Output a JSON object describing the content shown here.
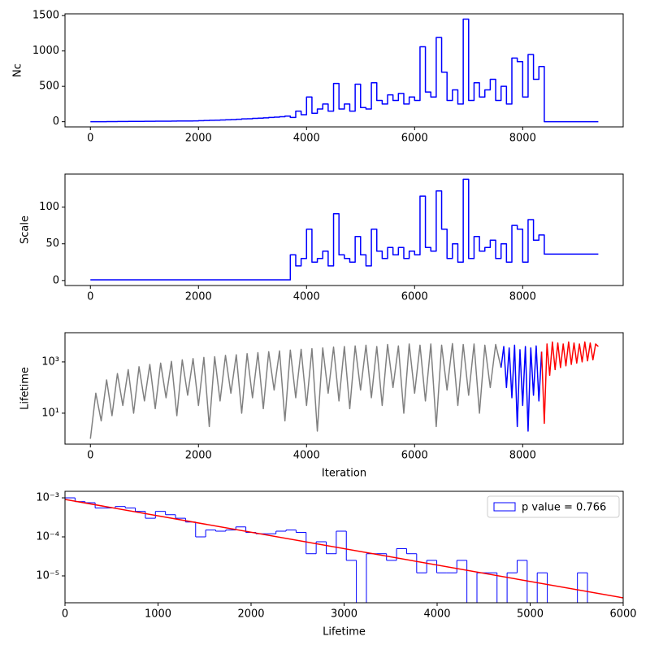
{
  "chart_data": [
    {
      "type": "line",
      "ylabel": "Nc",
      "step": true,
      "x": [
        0,
        100,
        200,
        300,
        400,
        500,
        600,
        700,
        800,
        900,
        1000,
        1100,
        1200,
        1300,
        1400,
        1500,
        1600,
        1700,
        1800,
        1900,
        2000,
        2100,
        2200,
        2300,
        2400,
        2500,
        2600,
        2700,
        2800,
        2900,
        3000,
        3100,
        3200,
        3300,
        3400,
        3500,
        3600,
        3700,
        3800,
        3900,
        4000,
        4100,
        4200,
        4300,
        4400,
        4500,
        4600,
        4700,
        4800,
        4900,
        5000,
        5100,
        5200,
        5300,
        5400,
        5500,
        5600,
        5700,
        5800,
        5900,
        6000,
        6100,
        6200,
        6300,
        6400,
        6500,
        6600,
        6700,
        6800,
        6900,
        7000,
        7100,
        7200,
        7300,
        7400,
        7500,
        7600,
        7700,
        7800,
        7900,
        8000,
        8100,
        8200,
        8300,
        8400,
        8500,
        8600,
        8700,
        8800,
        8900,
        9000,
        9100,
        9200,
        9300,
        9400
      ],
      "series": [
        {
          "color": "#0000ff",
          "values": [
            0,
            1,
            1,
            2,
            2,
            3,
            3,
            4,
            5,
            5,
            6,
            6,
            7,
            8,
            8,
            9,
            10,
            10,
            11,
            12,
            15,
            18,
            20,
            22,
            25,
            28,
            30,
            35,
            40,
            42,
            48,
            50,
            55,
            60,
            65,
            70,
            80,
            60,
            150,
            100,
            350,
            120,
            180,
            250,
            150,
            540,
            180,
            250,
            150,
            530,
            200,
            180,
            550,
            300,
            250,
            380,
            300,
            400,
            250,
            350,
            300,
            1060,
            420,
            350,
            1190,
            700,
            300,
            450,
            250,
            1450,
            300,
            550,
            350,
            450,
            600,
            300,
            500,
            250,
            900,
            850,
            350,
            950,
            600,
            780,
            0,
            0,
            0,
            0,
            0,
            0,
            0,
            0,
            0,
            0,
            0
          ]
        }
      ],
      "xlim": [
        -470,
        9860
      ],
      "xticks": [
        0,
        2000,
        4000,
        6000,
        8000
      ],
      "ylim": [
        -73,
        1525
      ],
      "yticks": [
        0,
        500,
        1000,
        1500
      ]
    },
    {
      "type": "line",
      "ylabel": "Scale",
      "step": true,
      "x": [
        0,
        100,
        200,
        300,
        400,
        500,
        600,
        700,
        800,
        900,
        1000,
        1100,
        1200,
        1300,
        1400,
        1500,
        1600,
        1700,
        1800,
        1900,
        2000,
        2100,
        2200,
        2300,
        2400,
        2500,
        2600,
        2700,
        2800,
        2900,
        3000,
        3100,
        3200,
        3300,
        3400,
        3500,
        3600,
        3700,
        3800,
        3900,
        4000,
        4100,
        4200,
        4300,
        4400,
        4500,
        4600,
        4700,
        4800,
        4900,
        5000,
        5100,
        5200,
        5300,
        5400,
        5500,
        5600,
        5700,
        5800,
        5900,
        6000,
        6100,
        6200,
        6300,
        6400,
        6500,
        6600,
        6700,
        6800,
        6900,
        7000,
        7100,
        7200,
        7300,
        7400,
        7500,
        7600,
        7700,
        7800,
        7900,
        8000,
        8100,
        8200,
        8300,
        8400,
        8500,
        8600,
        8700,
        8800,
        8900,
        9000,
        9100,
        9200,
        9300,
        9400
      ],
      "series": [
        {
          "color": "#0000ff",
          "values": [
            1,
            1,
            1,
            1,
            1,
            1,
            1,
            1,
            1,
            1,
            1,
            1,
            1,
            1,
            1,
            1,
            1,
            1,
            1,
            1,
            1,
            1,
            1,
            1,
            1,
            1,
            1,
            1,
            1,
            1,
            1,
            1,
            1,
            1,
            1,
            1,
            1,
            35,
            20,
            30,
            70,
            25,
            30,
            40,
            20,
            91,
            35,
            30,
            25,
            60,
            35,
            20,
            70,
            40,
            30,
            45,
            35,
            45,
            30,
            40,
            35,
            115,
            45,
            40,
            122,
            70,
            30,
            50,
            25,
            138,
            30,
            60,
            40,
            45,
            55,
            30,
            50,
            25,
            75,
            70,
            25,
            83,
            55,
            62,
            36,
            36,
            36,
            36,
            36,
            36,
            36,
            36,
            36,
            36,
            36
          ]
        }
      ],
      "xlim": [
        -470,
        9860
      ],
      "xticks": [
        0,
        2000,
        4000,
        6000,
        8000
      ],
      "ylim": [
        -6.8,
        145
      ],
      "yticks": [
        0,
        50,
        100
      ]
    },
    {
      "type": "line",
      "ylabel": "Lifetime",
      "xlabel": "Iteration",
      "yscale": "log",
      "series": [
        {
          "color": "#808080",
          "x": [
            0,
            100,
            200,
            300,
            400,
            500,
            600,
            700,
            800,
            900,
            1000,
            1100,
            1200,
            1300,
            1400,
            1500,
            1600,
            1700,
            1800,
            1900,
            2000,
            2100,
            2200,
            2300,
            2400,
            2500,
            2600,
            2700,
            2800,
            2900,
            3000,
            3100,
            3200,
            3300,
            3400,
            3500,
            3600,
            3700,
            3800,
            3900,
            4000,
            4100,
            4200,
            4300,
            4400,
            4500,
            4600,
            4700,
            4800,
            4900,
            5000,
            5100,
            5200,
            5300,
            5400,
            5500,
            5600,
            5700,
            5800,
            5900,
            6000,
            6100,
            6200,
            6300,
            6400,
            6500,
            6600,
            6700,
            6800,
            6900,
            7000,
            7100,
            7200,
            7300,
            7400,
            7500,
            7600
          ],
          "values": [
            1,
            60,
            5,
            200,
            8,
            350,
            20,
            500,
            10,
            650,
            30,
            800,
            15,
            900,
            40,
            1050,
            8,
            1200,
            50,
            1350,
            20,
            1500,
            3,
            1600,
            30,
            1800,
            60,
            1900,
            10,
            2100,
            40,
            2300,
            15,
            2500,
            80,
            2700,
            5,
            2900,
            40,
            3100,
            20,
            3300,
            2,
            3500,
            60,
            3800,
            30,
            4000,
            15,
            4200,
            80,
            4500,
            40,
            4000,
            20,
            4800,
            100,
            4200,
            10,
            5000,
            60,
            4500,
            30,
            5000,
            3,
            4500,
            80,
            5200,
            20,
            4800,
            50,
            5000,
            10,
            4500,
            100,
            4800,
            600
          ]
        },
        {
          "color": "#0000ff",
          "x": [
            7600,
            7650,
            7700,
            7750,
            7800,
            7850,
            7900,
            7950,
            8000,
            8050,
            8100,
            8150,
            8200,
            8250,
            8300,
            8350
          ],
          "values": [
            600,
            4000,
            100,
            3500,
            40,
            4500,
            3,
            3000,
            20,
            4000,
            2,
            3500,
            50,
            4200,
            30,
            2500
          ]
        },
        {
          "color": "#ff0000",
          "x": [
            8350,
            8400,
            8450,
            8500,
            8550,
            8600,
            8650,
            8700,
            8750,
            8800,
            8850,
            8900,
            8950,
            9000,
            9050,
            9100,
            9150,
            9200,
            9250,
            9300,
            9350,
            9400
          ],
          "values": [
            2500,
            4,
            5000,
            300,
            6000,
            500,
            5500,
            600,
            5000,
            700,
            6000,
            800,
            5500,
            900,
            5000,
            1000,
            6000,
            1100,
            5500,
            1200,
            5000,
            4000
          ]
        }
      ],
      "xlim": [
        -470,
        9860
      ],
      "xticks": [
        0,
        2000,
        4000,
        6000,
        8000
      ],
      "ylim": [
        0.62,
        13800
      ],
      "yticks": [
        {
          "value": 10,
          "label": "10¹"
        },
        {
          "value": 1000,
          "label": "10³"
        }
      ]
    },
    {
      "type": "histogram",
      "xlabel": "Lifetime",
      "yscale": "log",
      "name": "p value = 0.766",
      "color": "#0000ff",
      "legend": "upper right",
      "bins": [
        0,
        108,
        216,
        324,
        432,
        540,
        648,
        756,
        864,
        972,
        1080,
        1188,
        1296,
        1404,
        1512,
        1620,
        1728,
        1836,
        1944,
        2052,
        2160,
        2268,
        2376,
        2484,
        2592,
        2700,
        2808,
        2916,
        3024,
        3132,
        3240,
        3348,
        3456,
        3564,
        3672,
        3780,
        3888,
        3996,
        4104,
        4212,
        4320,
        4428,
        4536,
        4644,
        4752,
        4860,
        4968,
        5076,
        5184,
        5292,
        5400,
        5508,
        5616
      ],
      "values": [
        0.001,
        0.0008,
        0.00075,
        0.00055,
        0.00055,
        0.0006,
        0.00055,
        0.00045,
        0.0003,
        0.00045,
        0.00037,
        0.0003,
        0.00024,
        0.0001,
        0.00015,
        0.00014,
        0.00015,
        0.00018,
        0.00013,
        0.00012,
        0.00012,
        0.00014,
        0.00015,
        0.00013,
        3.7e-05,
        7.5e-05,
        3.7e-05,
        0.00014,
        2.5e-05,
        0,
        3.7e-05,
        3.7e-05,
        2.5e-05,
        5e-05,
        3.7e-05,
        1.2e-05,
        2.5e-05,
        1.2e-05,
        1.2e-05,
        2.5e-05,
        0,
        1.2e-05,
        1.2e-05,
        0,
        1.2e-05,
        2.5e-05,
        0,
        1.2e-05,
        0,
        0,
        0,
        1.2e-05
      ],
      "fit": {
        "color": "#ff0000",
        "x": [
          0,
          6000
        ],
        "values": [
          0.00091,
          2.74e-06
        ]
      },
      "xlim": [
        0,
        6000
      ],
      "xticks": [
        0,
        1000,
        2000,
        3000,
        4000,
        5000,
        6000
      ],
      "ylim": [
        2.05e-06,
        0.00147
      ],
      "yticks": [
        {
          "value": 1e-05,
          "label": "10⁻⁵"
        },
        {
          "value": 0.0001,
          "label": "10⁻⁴"
        },
        {
          "value": 0.001,
          "label": "10⁻³"
        }
      ]
    }
  ]
}
